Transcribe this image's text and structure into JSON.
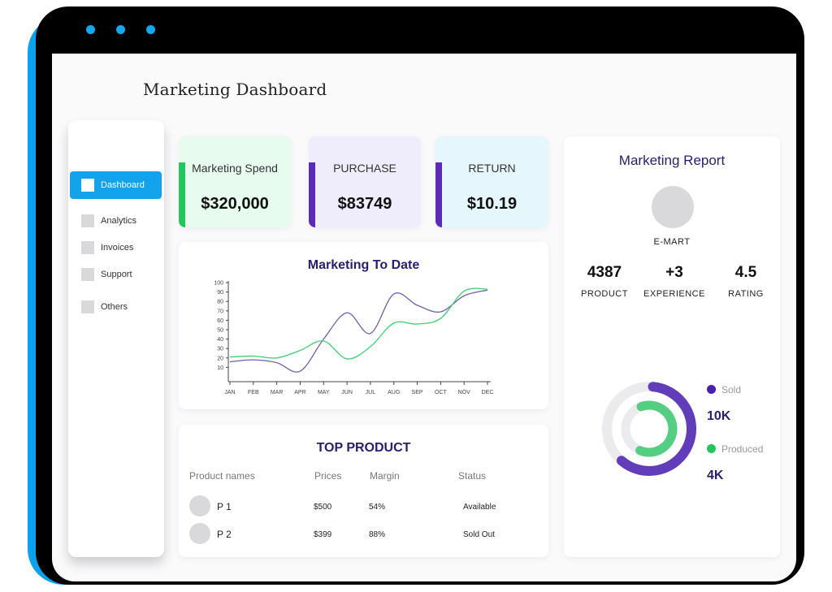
{
  "page": {
    "title": "Marketing Dashboard"
  },
  "sidebar": {
    "items": [
      {
        "label": "Dashboard",
        "active": true
      },
      {
        "label": "Analytics",
        "active": false
      },
      {
        "label": "Invoices",
        "active": false
      },
      {
        "label": "Support",
        "active": false
      },
      {
        "label": "Others",
        "active": false
      }
    ]
  },
  "kpis": [
    {
      "label": "Marketing Spend",
      "value": "$320,000",
      "accent": "#22c55e",
      "bg": "#e8fbef"
    },
    {
      "label": "PURCHASE",
      "value": "$83749",
      "accent": "#5b2bb8",
      "bg": "#efecfb"
    },
    {
      "label": "RETURN",
      "value": "$10.19",
      "accent": "#5b2bb8",
      "bg": "#e6f6fd"
    }
  ],
  "chart": {
    "title": "Marketing To Date",
    "y_ticks": [
      "100",
      "90",
      "80",
      "70",
      "60",
      "50",
      "40",
      "30",
      "20",
      "10"
    ],
    "x_ticks": [
      "JAN",
      "FEB",
      "MAR",
      "APR",
      "MAY",
      "JUN",
      "JUL",
      "AUG",
      "SEP",
      "OCT",
      "NOV",
      "DEC"
    ]
  },
  "chart_data": {
    "type": "line",
    "title": "Marketing To Date",
    "xlabel": "",
    "ylabel": "",
    "x": [
      "JAN",
      "FEB",
      "MAR",
      "APR",
      "MAY",
      "JUN",
      "JUL",
      "AUG",
      "SEP",
      "OCT",
      "NOV",
      "DEC"
    ],
    "ylim": [
      0,
      100
    ],
    "grid": false,
    "series": [
      {
        "color": "#6a5fb0",
        "values": [
          16,
          18,
          15,
          6,
          40,
          68,
          46,
          88,
          76,
          69,
          86,
          92
        ]
      },
      {
        "color": "#3fcf74",
        "values": [
          21,
          22,
          20,
          28,
          38,
          19,
          32,
          57,
          56,
          62,
          91,
          93
        ]
      }
    ]
  },
  "top_product": {
    "title": "TOP PRODUCT",
    "headers": {
      "name": "Product names",
      "price": "Prices",
      "margin": "Margin",
      "status": "Status"
    },
    "rows": [
      {
        "name": "P 1",
        "price": "$500",
        "margin": "54%",
        "status": "Available"
      },
      {
        "name": "P 2",
        "price": "$399",
        "margin": "88%",
        "status": "Sold Out"
      }
    ]
  },
  "report": {
    "title": "Marketing Report",
    "store_name": "E-MART",
    "stats": [
      {
        "value": "4387",
        "label": "PRODUCT"
      },
      {
        "value": "+3",
        "label": "EXPERIENCE"
      },
      {
        "value": "4.5",
        "label": "RATING"
      }
    ],
    "legend": [
      {
        "label": "Sold",
        "value": "10K",
        "color": "#4a1fb0"
      },
      {
        "label": "Produced",
        "value": "4K",
        "color": "#22c55e"
      }
    ],
    "donut": {
      "sold_fraction": 0.6,
      "produced_fraction": 0.62
    }
  }
}
